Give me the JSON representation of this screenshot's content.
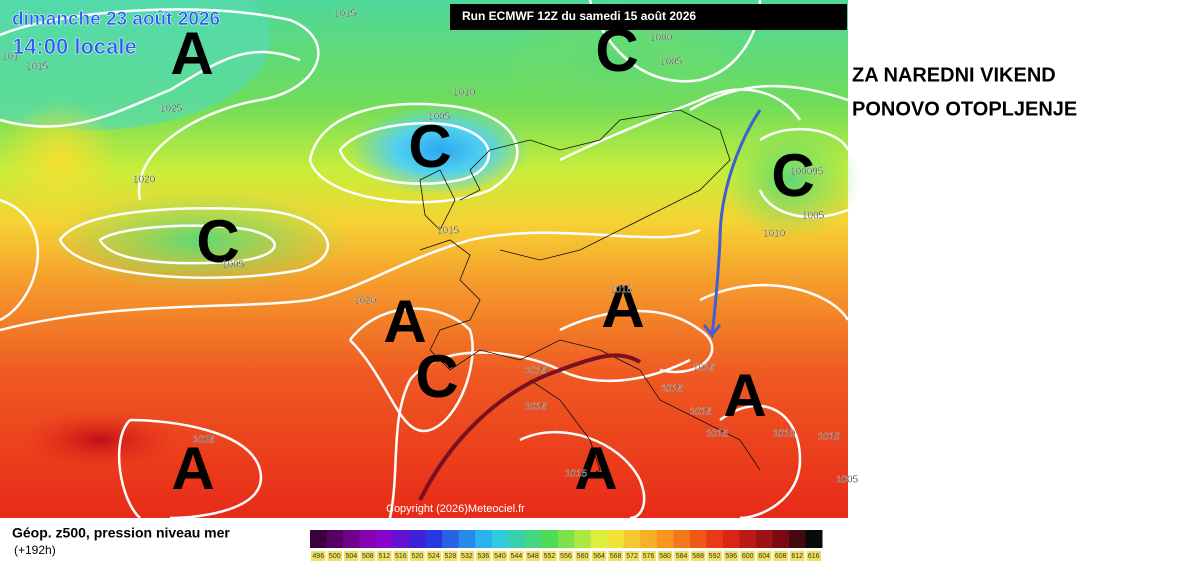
{
  "header": {
    "date": "dimanche 23 août 2026",
    "time": "14:00 locale",
    "run": "Run ECMWF 12Z du samedi 15 août 2026"
  },
  "map": {
    "systems": [
      "A",
      "C",
      "C",
      "C",
      "C",
      "A",
      "A",
      "C",
      "A",
      "A",
      "A"
    ],
    "isobar_labels": [
      "1015",
      "101",
      "1015",
      "1010",
      "1005",
      "1000",
      "1005",
      "1025",
      "1020",
      "1015",
      "1020",
      "100095",
      "1005",
      "1010",
      "1015",
      "1015",
      "1015",
      "1015",
      "1015",
      "1015",
      "1010",
      "1010",
      "1025",
      "1015",
      "1005",
      "1005",
      "1015"
    ],
    "copyright": "Copyright (2026)Meteociel.fr"
  },
  "footer": {
    "title": "Géop. z500, pression niveau mer",
    "lead": "(+192h)",
    "scale": [
      496,
      500,
      504,
      508,
      512,
      516,
      520,
      524,
      528,
      532,
      536,
      540,
      544,
      548,
      552,
      556,
      560,
      564,
      568,
      572,
      576,
      580,
      584,
      588,
      592,
      596,
      600,
      604,
      608,
      612,
      616
    ]
  },
  "annotation": [
    "ZA NAREDNI VIKEND",
    "PONOVO OTOPLJENJE"
  ]
}
